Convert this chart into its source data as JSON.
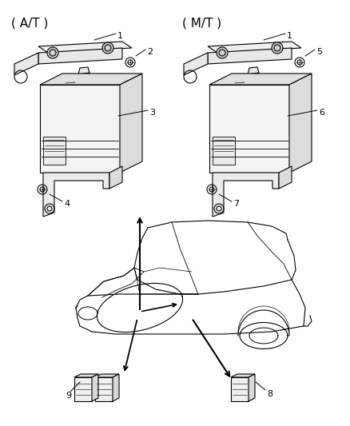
{
  "background_color": "#ffffff",
  "line_color": "#000000",
  "at_label": "( A/T )",
  "mt_label": "( M/T )",
  "figsize": [
    4.38,
    5.33
  ],
  "dpi": 100,
  "lw": 0.8
}
